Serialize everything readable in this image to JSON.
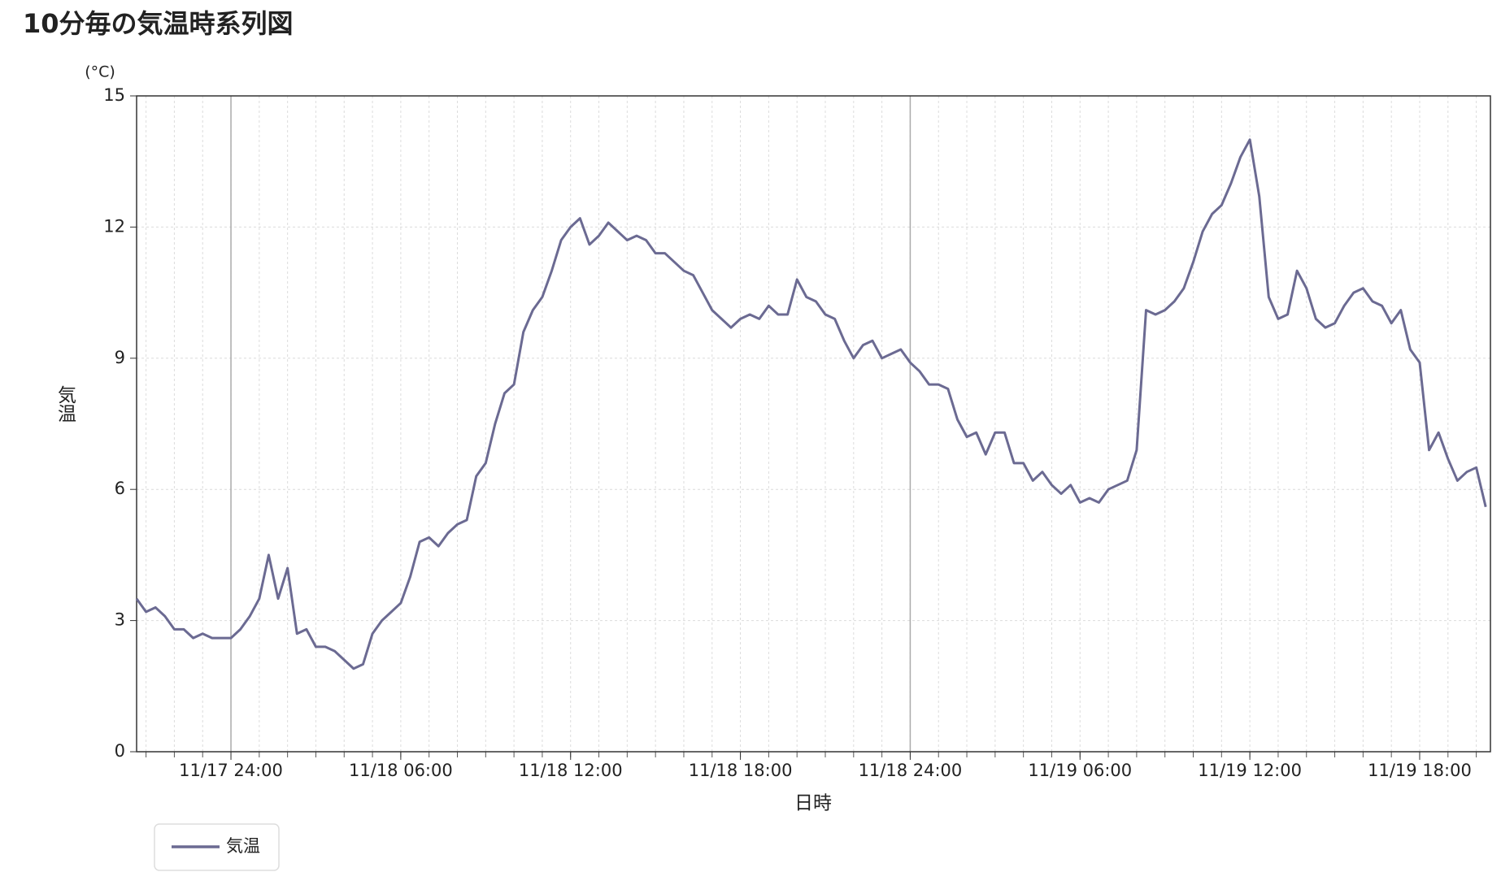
{
  "chart_data": {
    "type": "line",
    "title": "10分毎の気温時系列図",
    "x_label": "日時",
    "y_label": "気温",
    "y_unit": "(°C)",
    "x": [
      "11/17 20:40",
      "11/17 21:00",
      "11/17 21:20",
      "11/17 21:40",
      "11/17 22:00",
      "11/17 22:20",
      "11/17 22:40",
      "11/17 23:00",
      "11/17 23:20",
      "11/17 23:40",
      "11/18 00:00",
      "11/18 00:20",
      "11/18 00:40",
      "11/18 01:00",
      "11/18 01:20",
      "11/18 01:40",
      "11/18 02:00",
      "11/18 02:20",
      "11/18 02:40",
      "11/18 03:00",
      "11/18 03:20",
      "11/18 03:40",
      "11/18 04:00",
      "11/18 04:20",
      "11/18 04:40",
      "11/18 05:00",
      "11/18 05:20",
      "11/18 05:40",
      "11/18 06:00",
      "11/18 06:20",
      "11/18 06:40",
      "11/18 07:00",
      "11/18 07:20",
      "11/18 07:40",
      "11/18 08:00",
      "11/18 08:20",
      "11/18 08:40",
      "11/18 09:00",
      "11/18 09:20",
      "11/18 09:40",
      "11/18 10:00",
      "11/18 10:20",
      "11/18 10:40",
      "11/18 11:00",
      "11/18 11:20",
      "11/18 11:40",
      "11/18 12:00",
      "11/18 12:20",
      "11/18 12:40",
      "11/18 13:00",
      "11/18 13:20",
      "11/18 13:40",
      "11/18 14:00",
      "11/18 14:20",
      "11/18 14:40",
      "11/18 15:00",
      "11/18 15:20",
      "11/18 15:40",
      "11/18 16:00",
      "11/18 16:20",
      "11/18 16:40",
      "11/18 17:00",
      "11/18 17:20",
      "11/18 17:40",
      "11/18 18:00",
      "11/18 18:20",
      "11/18 18:40",
      "11/18 19:00",
      "11/18 19:20",
      "11/18 19:40",
      "11/18 20:00",
      "11/18 20:20",
      "11/18 20:40",
      "11/18 21:00",
      "11/18 21:20",
      "11/18 21:40",
      "11/18 22:00",
      "11/18 22:20",
      "11/18 22:40",
      "11/18 23:00",
      "11/18 23:20",
      "11/18 23:40",
      "11/19 00:00",
      "11/19 00:20",
      "11/19 00:40",
      "11/19 01:00",
      "11/19 01:20",
      "11/19 01:40",
      "11/19 02:00",
      "11/19 02:20",
      "11/19 02:40",
      "11/19 03:00",
      "11/19 03:20",
      "11/19 03:40",
      "11/19 04:00",
      "11/19 04:20",
      "11/19 04:40",
      "11/19 05:00",
      "11/19 05:20",
      "11/19 05:40",
      "11/19 06:00",
      "11/19 06:20",
      "11/19 06:40",
      "11/19 07:00",
      "11/19 07:20",
      "11/19 07:40",
      "11/19 08:00",
      "11/19 08:20",
      "11/19 08:40",
      "11/19 09:00",
      "11/19 09:20",
      "11/19 09:40",
      "11/19 10:00",
      "11/19 10:20",
      "11/19 10:40",
      "11/19 11:00",
      "11/19 11:20",
      "11/19 11:40",
      "11/19 12:00",
      "11/19 12:20",
      "11/19 12:40",
      "11/19 13:00",
      "11/19 13:20",
      "11/19 13:40",
      "11/19 14:00",
      "11/19 14:20",
      "11/19 14:40",
      "11/19 15:00",
      "11/19 15:20",
      "11/19 15:40",
      "11/19 16:00",
      "11/19 16:20",
      "11/19 16:40",
      "11/19 17:00",
      "11/19 17:20",
      "11/19 17:40",
      "11/19 18:00",
      "11/19 18:20",
      "11/19 18:40",
      "11/19 19:00",
      "11/19 19:20",
      "11/19 19:40",
      "11/19 20:00",
      "11/19 20:20"
    ],
    "series": [
      {
        "name": "気温",
        "color": "#6b6a92",
        "values": [
          3.5,
          3.2,
          3.3,
          3.1,
          2.8,
          2.8,
          2.6,
          2.7,
          2.6,
          2.6,
          2.6,
          2.8,
          3.1,
          3.5,
          4.5,
          3.5,
          4.2,
          2.7,
          2.8,
          2.4,
          2.4,
          2.3,
          2.1,
          1.9,
          2.0,
          2.7,
          3.0,
          3.2,
          3.4,
          4.0,
          4.8,
          4.9,
          4.7,
          5.0,
          5.2,
          5.3,
          6.3,
          6.6,
          7.5,
          8.2,
          8.4,
          9.6,
          10.1,
          10.4,
          11.0,
          11.7,
          12.0,
          12.2,
          11.6,
          11.8,
          12.1,
          11.9,
          11.7,
          11.8,
          11.7,
          11.4,
          11.4,
          11.2,
          11.0,
          10.9,
          10.5,
          10.1,
          9.9,
          9.7,
          9.9,
          10.0,
          9.9,
          10.2,
          10.0,
          10.0,
          10.8,
          10.4,
          10.3,
          10.0,
          9.9,
          9.4,
          9.0,
          9.3,
          9.4,
          9.0,
          9.1,
          9.2,
          8.9,
          8.7,
          8.4,
          8.4,
          8.3,
          7.6,
          7.2,
          7.3,
          6.8,
          7.3,
          7.3,
          6.6,
          6.6,
          6.2,
          6.4,
          6.1,
          5.9,
          6.1,
          5.7,
          5.8,
          5.7,
          6.0,
          6.1,
          6.2,
          6.9,
          10.1,
          10.0,
          10.1,
          10.3,
          10.6,
          11.2,
          11.9,
          12.3,
          12.5,
          13.0,
          13.6,
          14.0,
          12.7,
          10.4,
          9.9,
          10.0,
          11.0,
          10.6,
          9.9,
          9.7,
          9.8,
          10.2,
          10.5,
          10.6,
          10.3,
          10.2,
          9.8,
          10.1,
          9.2,
          8.9,
          6.9,
          7.3,
          6.7,
          6.2,
          6.4,
          6.5,
          5.6
        ]
      }
    ],
    "xlim": [
      "11/17 20:40",
      "11/19 20:30"
    ],
    "xticks": [
      "11/17 24:00",
      "11/18 06:00",
      "11/18 12:00",
      "11/18 18:00",
      "11/18 24:00",
      "11/19 06:00",
      "11/19 12:00",
      "11/19 18:00"
    ],
    "ylim": [
      0,
      15
    ],
    "yticks": [
      0,
      3,
      6,
      9,
      12,
      15
    ],
    "grid": true,
    "legend": "bottom-left"
  }
}
